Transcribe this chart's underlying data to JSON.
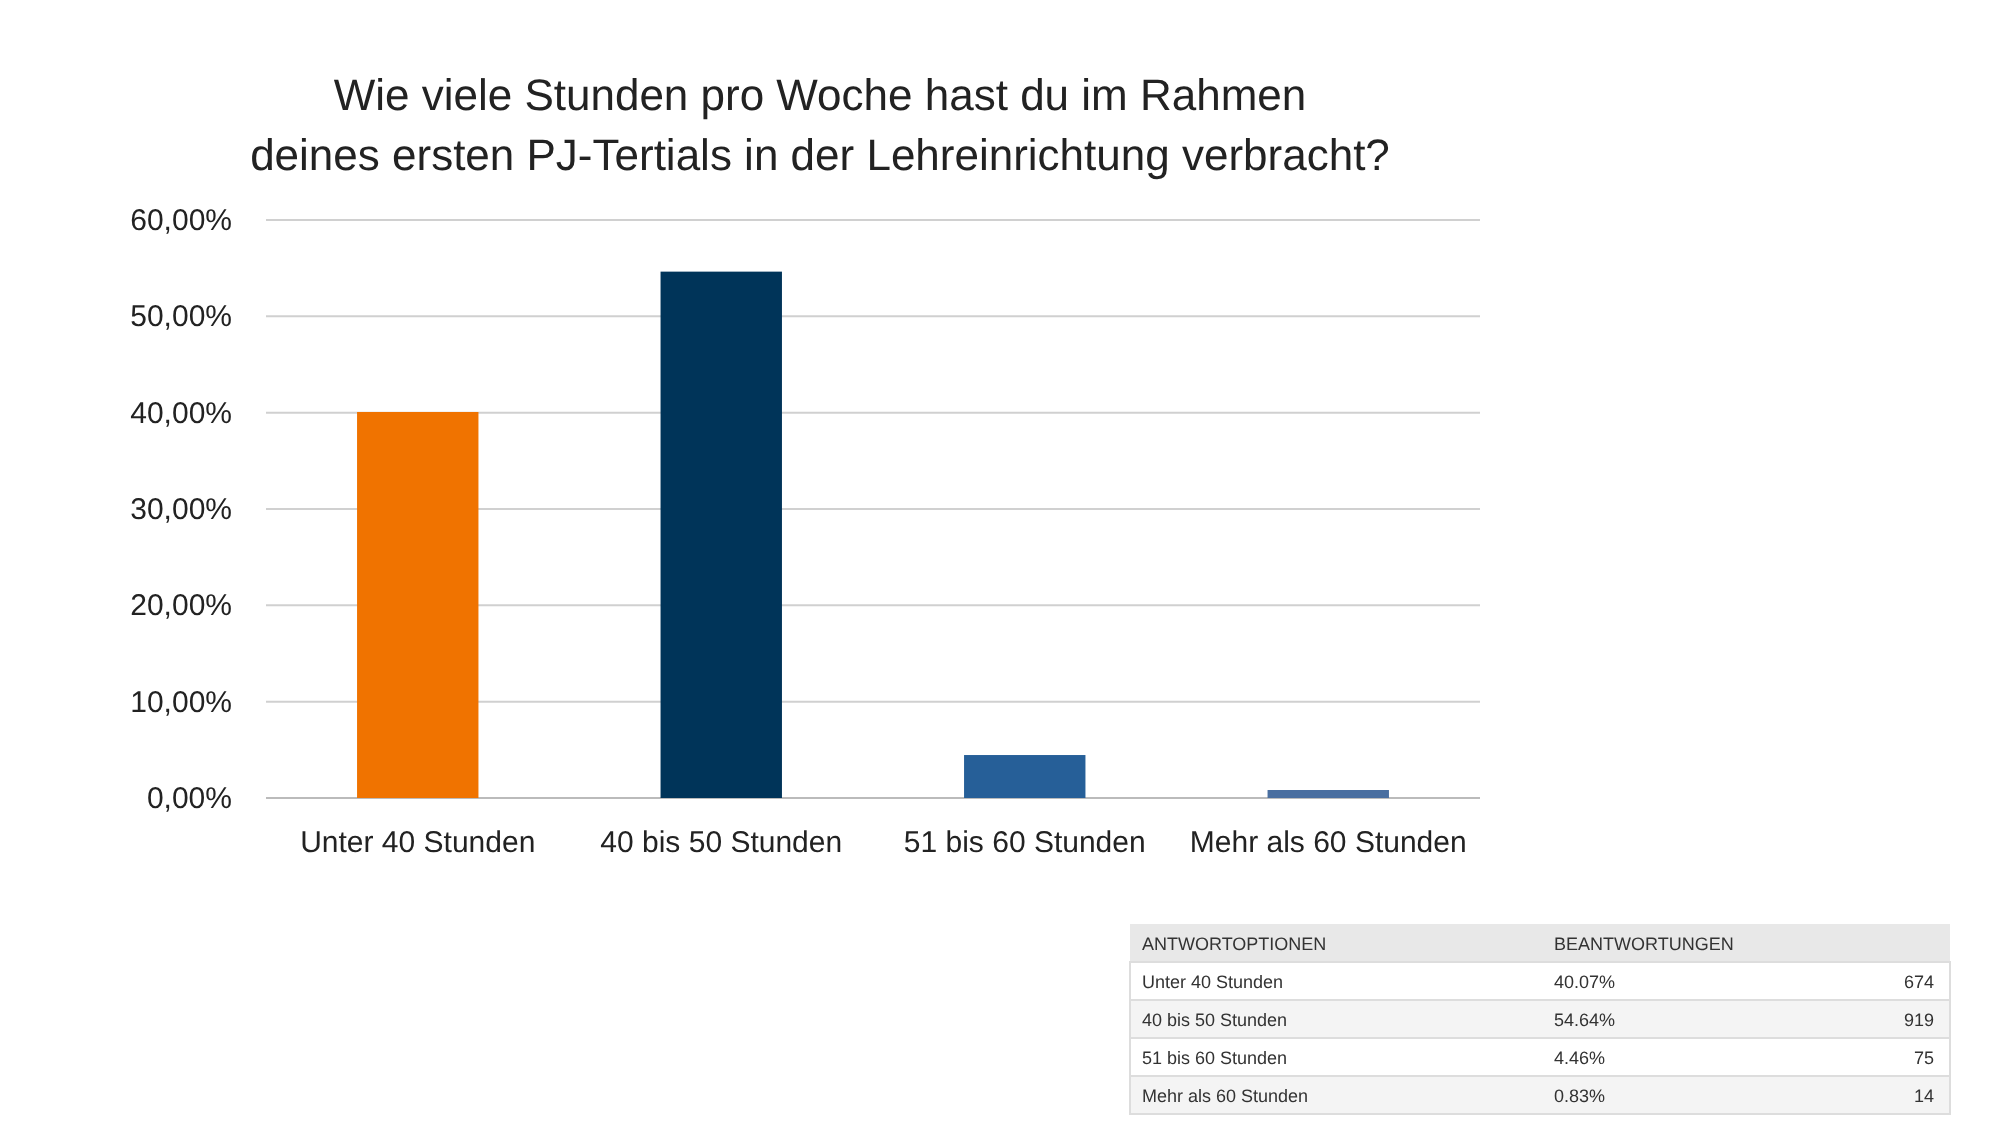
{
  "chart_data": {
    "type": "bar",
    "title": "Wie viele Stunden pro Woche hast du im Rahmen deines ersten PJ-Tertials in der Lehreinrichtung verbracht?",
    "categories": [
      "Unter 40 Stunden",
      "40 bis 50 Stunden",
      "51 bis 60 Stunden",
      "Mehr als 60 Stunden"
    ],
    "values": [
      40.07,
      54.64,
      4.46,
      0.83
    ],
    "colors": [
      "#f07300",
      "#003459",
      "#265f98",
      "#4a6fa0"
    ],
    "ylim": [
      0,
      60
    ],
    "yticks": [
      {
        "value": 0,
        "label": "0,00%"
      },
      {
        "value": 10,
        "label": "10,00%"
      },
      {
        "value": 20,
        "label": "20,00%"
      },
      {
        "value": 30,
        "label": "30,00%"
      },
      {
        "value": 40,
        "label": "40,00%"
      },
      {
        "value": 50,
        "label": "50,00%"
      },
      {
        "value": 60,
        "label": "60,00%"
      }
    ],
    "grid": "y",
    "annotations": [
      "ANTWORTOPTIONEN",
      "BEANTWORTUNGEN",
      "40.07%",
      "674",
      "54.64%",
      "919",
      "4.46%",
      "75",
      "0.83%",
      "14"
    ]
  }
}
